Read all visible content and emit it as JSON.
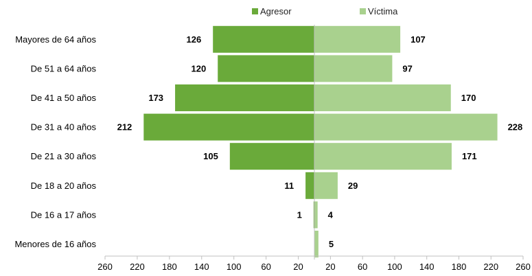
{
  "colors": {
    "agresor": "#6aaa3a",
    "victima": "#a9d18e",
    "axis": "#bfbfbf",
    "text": "#000000"
  },
  "chart_data": {
    "type": "bar",
    "orientation": "horizontal-butterfly",
    "categories": [
      "Mayores de 64 años",
      "De 51 a 64 años",
      "De 41 a 50 años",
      "De 31 a 40 años",
      "De 21 a 30 años",
      "De 18 a 20 años",
      "De 16 a 17 años",
      "Menores de 16 años"
    ],
    "series": [
      {
        "name": "Agresor",
        "side": "left",
        "values": [
          126,
          120,
          173,
          212,
          105,
          11,
          1,
          0
        ],
        "labels": [
          "126",
          "120",
          "173",
          "212",
          "105",
          "11",
          "1",
          ""
        ]
      },
      {
        "name": "Víctima",
        "side": "right",
        "values": [
          107,
          97,
          170,
          228,
          171,
          29,
          4,
          5
        ],
        "labels": [
          "107",
          "97",
          "170",
          "228",
          "171",
          "29",
          "4",
          "5"
        ]
      }
    ],
    "xlim": [
      -260,
      260
    ],
    "x_ticks_left": [
      "260",
      "220",
      "180",
      "140",
      "100",
      "60",
      "20"
    ],
    "x_ticks_right": [
      "20",
      "60",
      "100",
      "140",
      "180",
      "220",
      "260"
    ],
    "x_tick_values_left": [
      260,
      220,
      180,
      140,
      100,
      60,
      20
    ],
    "x_tick_values_right": [
      20,
      60,
      100,
      140,
      180,
      220,
      260
    ],
    "legend_position": "top-center",
    "grid": false,
    "title": "",
    "xlabel": "",
    "ylabel": ""
  }
}
